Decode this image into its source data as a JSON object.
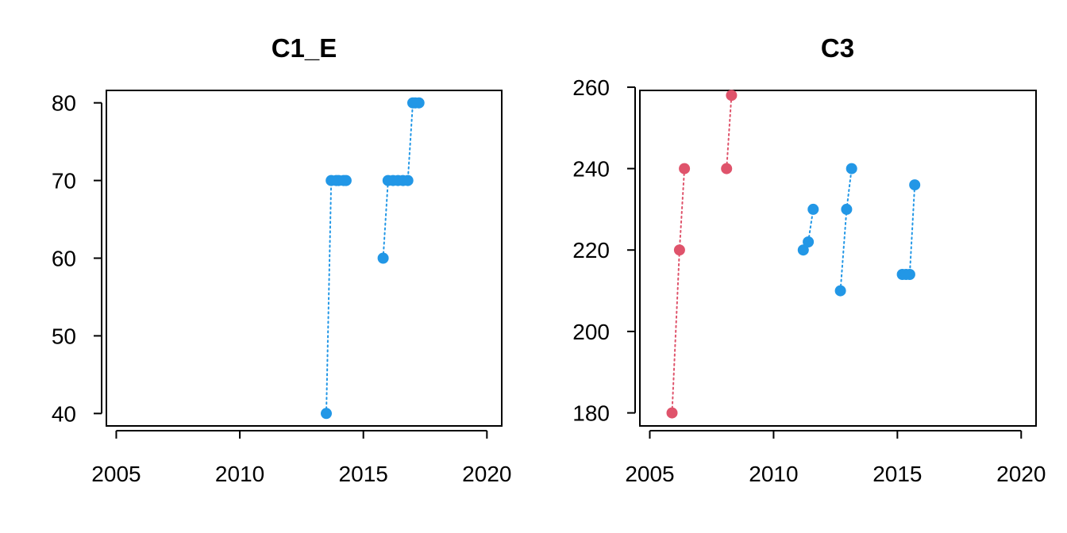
{
  "chart_data": [
    {
      "type": "scatter",
      "title": "C1_E",
      "xlabel": "",
      "ylabel": "",
      "xlim": [
        2004.6,
        2020.6
      ],
      "ylim": [
        38.4,
        81.6
      ],
      "xticks": [
        2005,
        2010,
        2015,
        2020
      ],
      "yticks": [
        40,
        50,
        60,
        70,
        80
      ],
      "grid": false,
      "series": [
        {
          "color": "#2297e6",
          "line_style": "dotted",
          "points": [
            [
              2013.5,
              40
            ],
            [
              2013.7,
              70
            ],
            [
              2013.9,
              70
            ],
            [
              2014.0,
              70
            ],
            [
              2014.2,
              70
            ],
            [
              2014.3,
              70
            ]
          ]
        },
        {
          "color": "#2297e6",
          "line_style": "dotted",
          "points": [
            [
              2015.8,
              60
            ],
            [
              2016.0,
              70
            ],
            [
              2016.2,
              70
            ],
            [
              2016.4,
              70
            ],
            [
              2016.6,
              70
            ],
            [
              2016.8,
              70
            ],
            [
              2017.0,
              80
            ],
            [
              2017.1,
              80
            ],
            [
              2017.25,
              80
            ]
          ]
        }
      ]
    },
    {
      "type": "scatter",
      "title": "C3",
      "xlabel": "",
      "ylabel": "",
      "xlim": [
        2004.6,
        2020.6
      ],
      "ylim": [
        176.8,
        259.2
      ],
      "xticks": [
        2005,
        2010,
        2015,
        2020
      ],
      "yticks": [
        180,
        200,
        220,
        240,
        260
      ],
      "grid": false,
      "series": [
        {
          "color": "#df536b",
          "line_style": "dotted",
          "points": [
            [
              2005.9,
              180
            ],
            [
              2006.2,
              220
            ],
            [
              2006.4,
              240
            ]
          ]
        },
        {
          "color": "#df536b",
          "line_style": "dotted",
          "points": [
            [
              2008.1,
              240
            ],
            [
              2008.3,
              258
            ]
          ]
        },
        {
          "color": "#2297e6",
          "line_style": "dotted",
          "points": [
            [
              2011.2,
              220
            ],
            [
              2011.4,
              222
            ],
            [
              2011.6,
              230
            ]
          ]
        },
        {
          "color": "#2297e6",
          "line_style": "dotted",
          "points": [
            [
              2012.7,
              210
            ],
            [
              2012.95,
              230
            ],
            [
              2013.15,
              240
            ]
          ]
        },
        {
          "color": "#2297e6",
          "line_style": "dotted",
          "points": [
            [
              2015.2,
              214
            ],
            [
              2015.35,
              214
            ],
            [
              2015.5,
              214
            ],
            [
              2015.7,
              236
            ]
          ]
        }
      ]
    }
  ]
}
